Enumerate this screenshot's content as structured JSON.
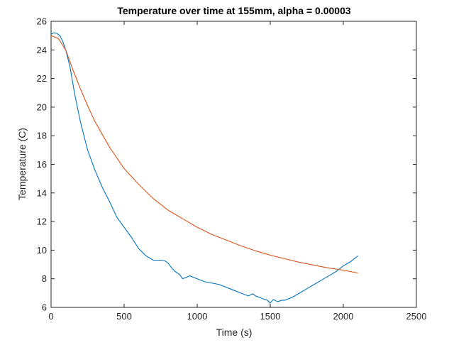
{
  "chart_data": {
    "type": "line",
    "title": "Temperature over time at 155mm, alpha = 0.00003",
    "xlabel": "Time (s)",
    "ylabel": "Temperature (C)",
    "xlim": [
      0,
      2500
    ],
    "ylim": [
      6,
      26
    ],
    "xticks": [
      0,
      500,
      1000,
      1500,
      2000,
      2500
    ],
    "yticks": [
      6,
      8,
      10,
      12,
      14,
      16,
      18,
      20,
      22,
      24,
      26
    ],
    "grid": false,
    "legend": "none",
    "series": [
      {
        "color": "#0072BD",
        "x": [
          0,
          20,
          40,
          60,
          80,
          100,
          130,
          160,
          200,
          250,
          300,
          350,
          400,
          450,
          500,
          550,
          600,
          650,
          700,
          750,
          780,
          800,
          830,
          850,
          880,
          900,
          950,
          1000,
          1050,
          1100,
          1150,
          1200,
          1250,
          1300,
          1350,
          1380,
          1400,
          1450,
          1480,
          1500,
          1520,
          1550,
          1580,
          1600,
          1650,
          1700,
          1750,
          1800,
          1850,
          1900,
          1950,
          2000,
          2050,
          2100
        ],
        "y": [
          25.1,
          25.2,
          25.15,
          25.0,
          24.6,
          24.0,
          22.8,
          21.0,
          19.0,
          17.0,
          15.6,
          14.4,
          13.4,
          12.3,
          11.6,
          10.9,
          10.1,
          9.6,
          9.3,
          9.3,
          9.25,
          9.1,
          8.7,
          8.5,
          8.3,
          8.0,
          8.2,
          8.0,
          7.8,
          7.7,
          7.6,
          7.4,
          7.2,
          7.0,
          6.8,
          6.95,
          6.8,
          6.6,
          6.5,
          6.3,
          6.55,
          6.4,
          6.5,
          6.5,
          6.7,
          7.0,
          7.3,
          7.6,
          7.9,
          8.2,
          8.5,
          8.9,
          9.2,
          9.6
        ]
      },
      {
        "color": "#D95319",
        "x": [
          0,
          50,
          100,
          150,
          200,
          250,
          300,
          400,
          500,
          600,
          700,
          800,
          900,
          1000,
          1100,
          1200,
          1300,
          1400,
          1500,
          1600,
          1700,
          1800,
          1900,
          2000,
          2100
        ],
        "y": [
          25.0,
          24.8,
          24.0,
          22.6,
          21.3,
          20.1,
          19.0,
          17.2,
          15.7,
          14.6,
          13.6,
          12.8,
          12.2,
          11.6,
          11.1,
          10.7,
          10.3,
          9.95,
          9.65,
          9.4,
          9.15,
          8.95,
          8.75,
          8.6,
          8.4
        ]
      }
    ]
  }
}
